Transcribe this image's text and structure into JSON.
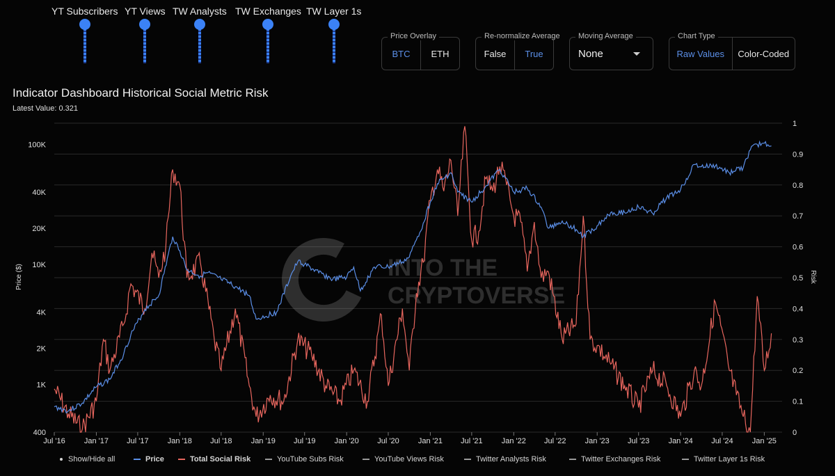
{
  "sliders": [
    {
      "label": "YT Subscribers"
    },
    {
      "label": "YT Views"
    },
    {
      "label": "TW Analysts"
    },
    {
      "label": "TW Exchanges"
    },
    {
      "label": "TW Layer 1s"
    }
  ],
  "controls": {
    "price_overlay": {
      "legend": "Price Overlay",
      "options": [
        "BTC",
        "ETH"
      ],
      "selected": "BTC"
    },
    "renormalize": {
      "legend": "Re-normalize Average",
      "options": [
        "False",
        "True"
      ],
      "selected": "True"
    },
    "moving_average": {
      "legend": "Moving Average",
      "value": "None"
    },
    "chart_type": {
      "legend": "Chart Type",
      "options": [
        "Raw Values",
        "Color-Coded"
      ],
      "selected": "Raw Values"
    }
  },
  "title": "Indicator Dashboard Historical Social Metric Risk",
  "latest_value": "Latest Value: 0.321",
  "watermark": {
    "line1": "INTO THE",
    "line2": "CRYPTOVERSE"
  },
  "colors": {
    "price": "#5b8fe8",
    "risk": "#e8665e",
    "grid": "#2a2a2a",
    "accent": "#3b82f6"
  },
  "legend": {
    "show_hide": "Show/Hide all",
    "items": [
      {
        "name": "Price",
        "color": "#5b8fe8",
        "bold": true
      },
      {
        "name": "Total Social Risk",
        "color": "#e8665e",
        "bold": true
      },
      {
        "name": "YouTube Subs Risk",
        "color": "#9a9a9a",
        "bold": false
      },
      {
        "name": "YouTube Views Risk",
        "color": "#9a9a9a",
        "bold": false
      },
      {
        "name": "Twitter Analysts Risk",
        "color": "#9a9a9a",
        "bold": false
      },
      {
        "name": "Twitter Exchanges Risk",
        "color": "#9a9a9a",
        "bold": false
      },
      {
        "name": "Twitter Layer 1s Risk",
        "color": "#9a9a9a",
        "bold": false
      }
    ]
  },
  "chart_data": {
    "type": "line",
    "xlabel": "",
    "ylabel": "Price ($)",
    "y2label": "Risk",
    "x_ticks": [
      "Jul '16",
      "Jan '17",
      "Jul '17",
      "Jan '18",
      "Jul '18",
      "Jan '19",
      "Jul '19",
      "Jan '20",
      "Jul '20",
      "Jan '21",
      "Jul '21",
      "Jan '22",
      "Jul '22",
      "Jan '23",
      "Jul '23",
      "Jan '24",
      "Jul '24",
      "Jan '25"
    ],
    "y_ticks": [
      "400",
      "1K",
      "2K",
      "4K",
      "10K",
      "20K",
      "40K",
      "100K"
    ],
    "y_tick_values": [
      400,
      1000,
      2000,
      4000,
      10000,
      20000,
      40000,
      100000
    ],
    "y2_ticks": [
      "0",
      "0.1",
      "0.2",
      "0.3",
      "0.4",
      "0.5",
      "0.6",
      "0.7",
      "0.8",
      "0.9",
      "1"
    ],
    "y_scale": "log",
    "ylim": [
      400,
      150000
    ],
    "y2lim": [
      0,
      1
    ],
    "grid": true,
    "legend_position": "bottom",
    "series": [
      {
        "name": "Price",
        "axis": "left",
        "x": [
          "2016-07",
          "2016-09",
          "2016-11",
          "2017-01",
          "2017-03",
          "2017-05",
          "2017-06",
          "2017-08",
          "2017-10",
          "2017-12",
          "2018-01",
          "2018-02",
          "2018-04",
          "2018-05",
          "2018-07",
          "2018-09",
          "2018-11",
          "2018-12",
          "2019-03",
          "2019-05",
          "2019-06",
          "2019-07",
          "2019-09",
          "2019-11",
          "2020-01",
          "2020-02",
          "2020-03",
          "2020-05",
          "2020-07",
          "2020-09",
          "2020-10",
          "2020-11",
          "2020-12",
          "2021-01",
          "2021-02",
          "2021-04",
          "2021-05",
          "2021-07",
          "2021-09",
          "2021-11",
          "2022-01",
          "2022-03",
          "2022-05",
          "2022-06",
          "2022-08",
          "2022-10",
          "2022-11",
          "2023-01",
          "2023-03",
          "2023-05",
          "2023-07",
          "2023-09",
          "2023-11",
          "2024-01",
          "2024-03",
          "2024-04",
          "2024-06",
          "2024-08",
          "2024-10",
          "2024-11",
          "2024-12",
          "2025-01",
          "2025-02"
        ],
        "values": [
          650,
          600,
          700,
          950,
          1100,
          1800,
          2600,
          4200,
          5500,
          17000,
          13000,
          9000,
          8000,
          8500,
          7500,
          6500,
          5500,
          3500,
          4000,
          8000,
          10500,
          10000,
          8500,
          7500,
          7800,
          9500,
          6000,
          9500,
          9500,
          10500,
          11500,
          16000,
          22000,
          33000,
          47000,
          58000,
          40000,
          33000,
          45000,
          62000,
          40000,
          43000,
          30000,
          20000,
          23000,
          19500,
          17000,
          21000,
          27000,
          27000,
          30000,
          26500,
          36000,
          42000,
          68000,
          65000,
          66000,
          58000,
          64000,
          90000,
          100000,
          102000,
          97000
        ]
      },
      {
        "name": "Total Social Risk",
        "axis": "right",
        "x": [
          "2016-07",
          "2016-09",
          "2016-11",
          "2017-01",
          "2017-02",
          "2017-03",
          "2017-05",
          "2017-06",
          "2017-08",
          "2017-09",
          "2017-10",
          "2017-11",
          "2017-12",
          "2018-01",
          "2018-02",
          "2018-04",
          "2018-06",
          "2018-07",
          "2018-09",
          "2018-11",
          "2018-12",
          "2019-02",
          "2019-04",
          "2019-06",
          "2019-08",
          "2019-10",
          "2019-12",
          "2020-02",
          "2020-04",
          "2020-06",
          "2020-07",
          "2020-09",
          "2020-10",
          "2020-11",
          "2020-12",
          "2021-01",
          "2021-02",
          "2021-03",
          "2021-04",
          "2021-05",
          "2021-06",
          "2021-07",
          "2021-08",
          "2021-09",
          "2021-10",
          "2021-11",
          "2021-12",
          "2022-01",
          "2022-02",
          "2022-03",
          "2022-04",
          "2022-05",
          "2022-06",
          "2022-08",
          "2022-10",
          "2022-11",
          "2022-12",
          "2023-01",
          "2023-03",
          "2023-05",
          "2023-07",
          "2023-09",
          "2023-11",
          "2024-01",
          "2024-03",
          "2024-04",
          "2024-06",
          "2024-08",
          "2024-09",
          "2024-10",
          "2024-11",
          "2024-12",
          "2025-01",
          "2025-02"
        ],
        "values": [
          0.14,
          0.06,
          0.01,
          0.1,
          0.3,
          0.2,
          0.35,
          0.48,
          0.4,
          0.58,
          0.5,
          0.6,
          0.85,
          0.8,
          0.5,
          0.55,
          0.3,
          0.2,
          0.4,
          0.15,
          0.05,
          0.12,
          0.1,
          0.3,
          0.25,
          0.15,
          0.1,
          0.2,
          0.1,
          0.38,
          0.15,
          0.4,
          0.2,
          0.45,
          0.55,
          0.75,
          0.85,
          0.78,
          0.88,
          0.7,
          0.99,
          0.62,
          0.65,
          0.82,
          0.78,
          0.86,
          0.8,
          0.7,
          0.68,
          0.52,
          0.68,
          0.5,
          0.52,
          0.3,
          0.35,
          0.7,
          0.3,
          0.28,
          0.22,
          0.15,
          0.08,
          0.2,
          0.15,
          0.05,
          0.2,
          0.15,
          0.42,
          0.2,
          0.12,
          0.05,
          0.0,
          0.44,
          0.2,
          0.32
        ]
      }
    ]
  }
}
